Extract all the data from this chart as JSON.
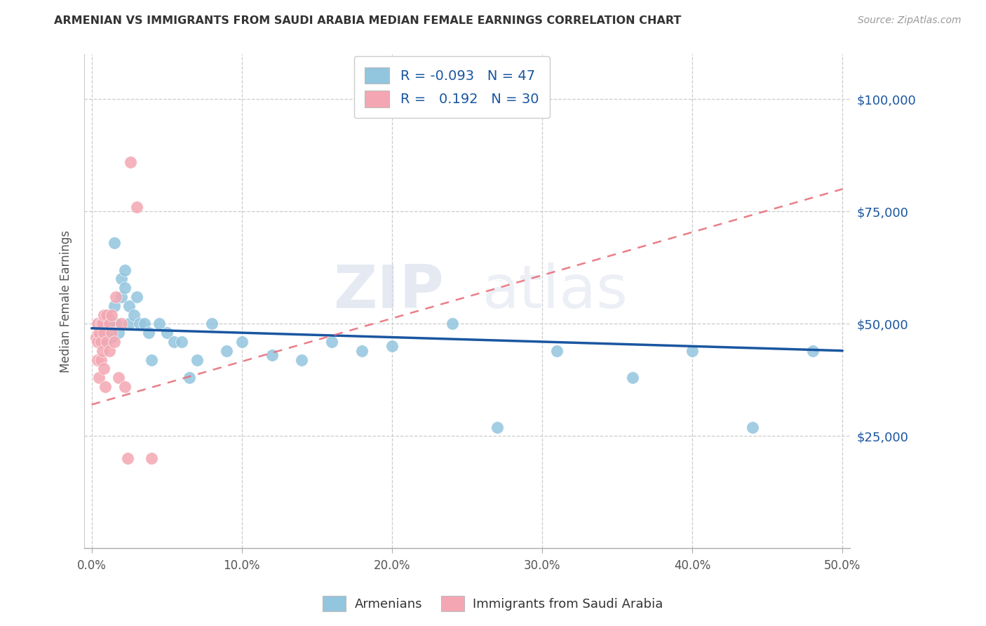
{
  "title": "ARMENIAN VS IMMIGRANTS FROM SAUDI ARABIA MEDIAN FEMALE EARNINGS CORRELATION CHART",
  "source": "Source: ZipAtlas.com",
  "xlabel_ticks": [
    "0.0%",
    "10.0%",
    "20.0%",
    "30.0%",
    "40.0%",
    "50.0%"
  ],
  "xlabel_vals": [
    0.0,
    0.1,
    0.2,
    0.3,
    0.4,
    0.5
  ],
  "ylabel": "Median Female Earnings",
  "ylabel_ticks": [
    0,
    25000,
    50000,
    75000,
    100000
  ],
  "ylabel_labels": [
    "",
    "$25,000",
    "$50,000",
    "$75,000",
    "$100,000"
  ],
  "xlim": [
    -0.005,
    0.505
  ],
  "ylim": [
    0,
    110000
  ],
  "legend1_label": "Armenians",
  "legend2_label": "Immigrants from Saudi Arabia",
  "r_armenian": -0.093,
  "n_armenian": 47,
  "r_saudi": 0.192,
  "n_saudi": 30,
  "watermark_zip": "ZIP",
  "watermark_atlas": "atlas",
  "blue_color": "#92c5de",
  "pink_color": "#f4a7b2",
  "blue_line_color": "#1a56a0",
  "pink_line_color": "#e8707a",
  "armenian_x": [
    0.005,
    0.007,
    0.008,
    0.009,
    0.01,
    0.01,
    0.01,
    0.012,
    0.012,
    0.013,
    0.015,
    0.015,
    0.016,
    0.018,
    0.02,
    0.02,
    0.022,
    0.022,
    0.025,
    0.025,
    0.028,
    0.03,
    0.032,
    0.035,
    0.038,
    0.04,
    0.045,
    0.05,
    0.055,
    0.06,
    0.065,
    0.07,
    0.08,
    0.09,
    0.1,
    0.12,
    0.14,
    0.16,
    0.18,
    0.2,
    0.24,
    0.27,
    0.31,
    0.36,
    0.4,
    0.44,
    0.48
  ],
  "armenian_y": [
    50000,
    49000,
    48000,
    47000,
    52000,
    50000,
    46000,
    51000,
    49000,
    47000,
    68000,
    54000,
    50000,
    48000,
    60000,
    56000,
    62000,
    58000,
    54000,
    50000,
    52000,
    56000,
    50000,
    50000,
    48000,
    42000,
    50000,
    48000,
    46000,
    46000,
    38000,
    42000,
    50000,
    44000,
    46000,
    43000,
    42000,
    46000,
    44000,
    45000,
    50000,
    27000,
    44000,
    38000,
    44000,
    27000,
    44000
  ],
  "saudi_x": [
    0.003,
    0.004,
    0.004,
    0.004,
    0.005,
    0.005,
    0.006,
    0.006,
    0.006,
    0.007,
    0.007,
    0.008,
    0.008,
    0.008,
    0.009,
    0.01,
    0.01,
    0.012,
    0.012,
    0.013,
    0.013,
    0.015,
    0.016,
    0.018,
    0.02,
    0.022,
    0.024,
    0.026,
    0.03,
    0.04
  ],
  "saudi_y": [
    47000,
    50000,
    46000,
    42000,
    48000,
    38000,
    50000,
    46000,
    42000,
    50000,
    44000,
    52000,
    48000,
    40000,
    36000,
    52000,
    46000,
    50000,
    44000,
    52000,
    48000,
    46000,
    56000,
    38000,
    50000,
    36000,
    20000,
    86000,
    76000,
    20000
  ],
  "saudi_trendline_x0": 0.0,
  "saudi_trendline_x1": 0.5,
  "saudi_trendline_y0": 32000,
  "saudi_trendline_y1": 80000,
  "arm_trendline_x0": 0.0,
  "arm_trendline_x1": 0.5,
  "arm_trendline_y0": 49000,
  "arm_trendline_y1": 44000
}
